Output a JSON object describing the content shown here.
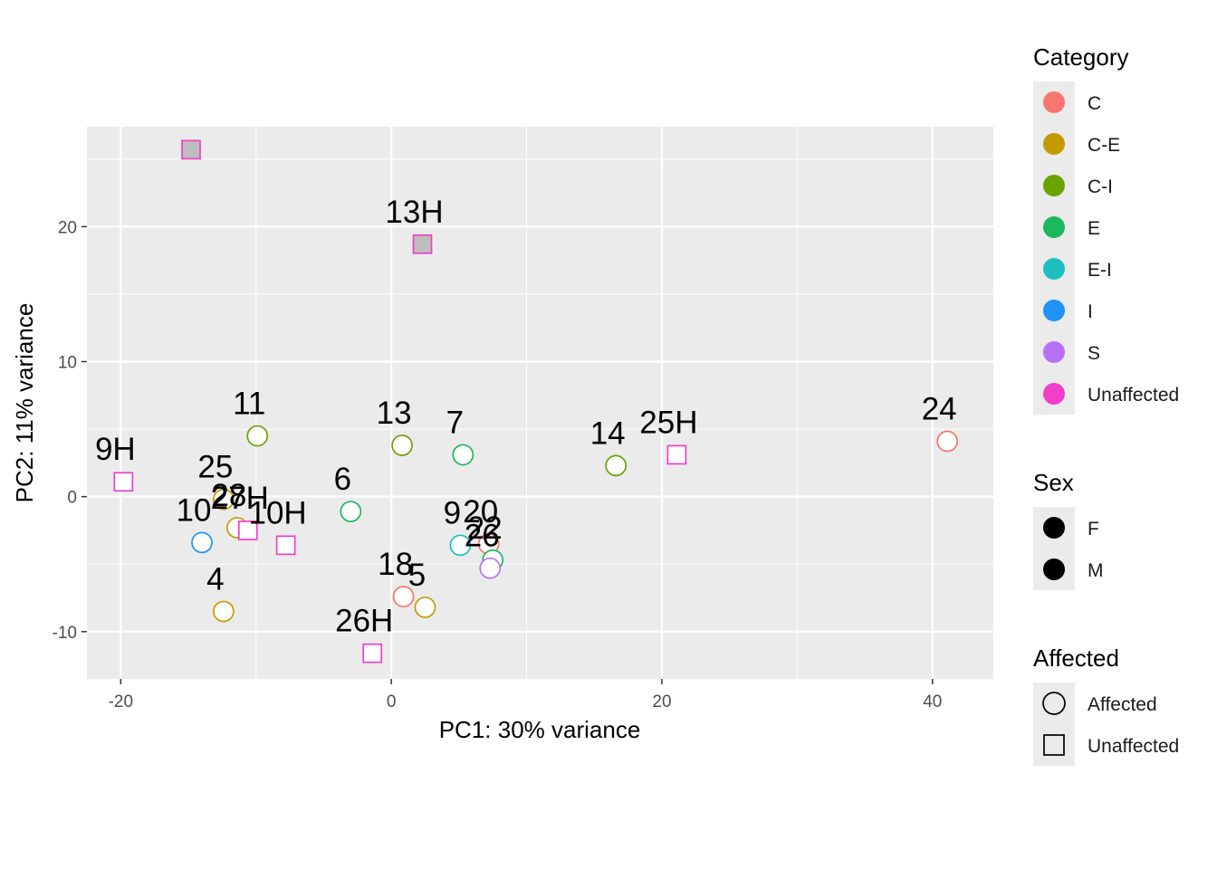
{
  "chart_data": {
    "type": "scatter",
    "xlabel": "PC1: 30% variance",
    "ylabel": "PC2: 11% variance",
    "xlim": [
      -22.5,
      44.5
    ],
    "ylim": [
      -13.5,
      27.4
    ],
    "x_ticks": [
      -20,
      0,
      20,
      40
    ],
    "x_tick_labels": [
      "-20",
      "0",
      "20",
      "40"
    ],
    "y_ticks": [
      -10,
      0,
      10,
      20
    ],
    "y_tick_labels": [
      "-10",
      "0",
      "10",
      "20"
    ],
    "grid": true,
    "colors": {
      "C": "#F8766D",
      "C-E": "#C49A00",
      "C-I": "#6BA300",
      "E": "#1DB85C",
      "E-I": "#1FBFBF",
      "I": "#1F92F5",
      "S": "#B870F5",
      "Unaffected": "#F03FC8",
      "grey_fill": "#BEBEBE"
    },
    "points": [
      {
        "label": "24",
        "x": 41.1,
        "y": 4.1,
        "category": "C",
        "affected": "Affected",
        "filled": false
      },
      {
        "label": "18",
        "x": 0.9,
        "y": -7.4,
        "category": "C",
        "affected": "Affected",
        "filled": false
      },
      {
        "label": "20",
        "x": 7.2,
        "y": -3.5,
        "category": "C",
        "affected": "Affected",
        "filled": false
      },
      {
        "label": "25",
        "x": -12.4,
        "y": -0.2,
        "category": "C-E",
        "affected": "Affected",
        "filled": false
      },
      {
        "label": "4",
        "x": -12.4,
        "y": -8.5,
        "category": "C-E",
        "affected": "Affected",
        "filled": false
      },
      {
        "label": "5",
        "x": 2.5,
        "y": -8.2,
        "category": "C-E",
        "affected": "Affected",
        "filled": false
      },
      {
        "label": "28",
        "x": -11.4,
        "y": -2.3,
        "category": "C-E",
        "affected": "Affected",
        "filled": false
      },
      {
        "label": "11",
        "x": -9.9,
        "y": 4.5,
        "category": "C-I",
        "affected": "Affected",
        "filled": false
      },
      {
        "label": "13",
        "x": 0.8,
        "y": 3.8,
        "category": "C-I",
        "affected": "Affected",
        "filled": false
      },
      {
        "label": "14",
        "x": 16.6,
        "y": 2.3,
        "category": "C-I",
        "affected": "Affected",
        "filled": false
      },
      {
        "label": "6",
        "x": -3.0,
        "y": -1.1,
        "category": "E",
        "affected": "Affected",
        "filled": false
      },
      {
        "label": "7",
        "x": 5.3,
        "y": 3.1,
        "category": "E",
        "affected": "Affected",
        "filled": false
      },
      {
        "label": "22",
        "x": 7.5,
        "y": -4.7,
        "category": "E",
        "affected": "Affected",
        "filled": false
      },
      {
        "label": "9",
        "x": 5.1,
        "y": -3.6,
        "category": "E-I",
        "affected": "Affected",
        "filled": false
      },
      {
        "label": "10",
        "x": -14.0,
        "y": -3.4,
        "category": "I",
        "affected": "Affected",
        "filled": false
      },
      {
        "label": "26",
        "x": 7.3,
        "y": -5.3,
        "category": "S",
        "affected": "Affected",
        "filled": false
      },
      {
        "label": "9H",
        "x": -19.8,
        "y": 1.1,
        "category": "Unaffected",
        "affected": "Unaffected",
        "filled": false
      },
      {
        "label": "27H",
        "x": -10.6,
        "y": -2.5,
        "category": "Unaffected",
        "affected": "Unaffected",
        "filled": false
      },
      {
        "label": "10H",
        "x": -7.8,
        "y": -3.6,
        "category": "Unaffected",
        "affected": "Unaffected",
        "filled": false
      },
      {
        "label": "26H",
        "x": -1.4,
        "y": -11.6,
        "category": "Unaffected",
        "affected": "Unaffected",
        "filled": false
      },
      {
        "label": "25H",
        "x": 21.1,
        "y": 3.1,
        "category": "Unaffected",
        "affected": "Unaffected",
        "filled": false
      },
      {
        "label": "13H",
        "x": 2.3,
        "y": 18.7,
        "category": "Unaffected",
        "affected": "Unaffected",
        "filled": true
      },
      {
        "label": "",
        "x": -14.8,
        "y": 25.7,
        "category": "Unaffected",
        "affected": "Unaffected",
        "filled": true
      }
    ],
    "legends": [
      {
        "title": "Category",
        "kind": "fill",
        "entries": [
          {
            "label": "C",
            "key": "C"
          },
          {
            "label": "C-E",
            "key": "C-E"
          },
          {
            "label": "C-I",
            "key": "C-I"
          },
          {
            "label": "E",
            "key": "E"
          },
          {
            "label": "E-I",
            "key": "E-I"
          },
          {
            "label": "I",
            "key": "I"
          },
          {
            "label": "S",
            "key": "S"
          },
          {
            "label": "Unaffected",
            "key": "Unaffected"
          }
        ]
      },
      {
        "title": "Sex",
        "kind": "solid",
        "entries": [
          {
            "label": "F"
          },
          {
            "label": "M"
          }
        ]
      },
      {
        "title": "Affected",
        "kind": "shape",
        "entries": [
          {
            "label": "Affected",
            "shape": "circle"
          },
          {
            "label": "Unaffected",
            "shape": "square"
          }
        ]
      }
    ]
  }
}
